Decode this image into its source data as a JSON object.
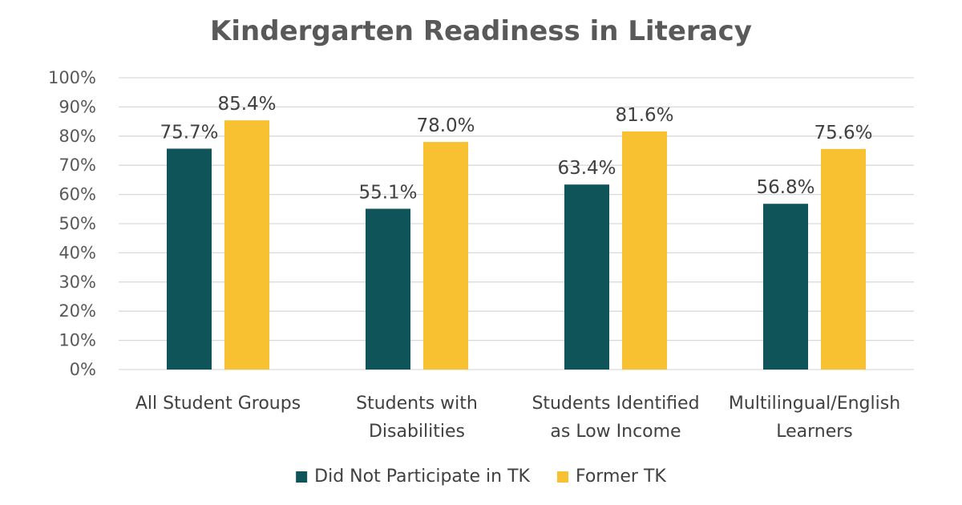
{
  "chart_data": {
    "type": "bar",
    "title": "Kindergarten Readiness in Literacy",
    "categories": [
      [
        "All Student Groups"
      ],
      [
        "Students with",
        "Disabilities"
      ],
      [
        "Students Identified",
        "as Low Income"
      ],
      [
        "Multilingual/English",
        "Learners"
      ]
    ],
    "series": [
      {
        "name": "Did Not Participate in TK",
        "color": "#0f5459",
        "values": [
          75.7,
          55.1,
          63.4,
          56.8
        ],
        "labels": [
          "75.7%",
          "55.1%",
          "63.4%",
          "56.8%"
        ]
      },
      {
        "name": "Former TK",
        "color": "#f8c132",
        "values": [
          85.4,
          78.0,
          81.6,
          75.6
        ],
        "labels": [
          "85.4%",
          "78.0%",
          "81.6%",
          "75.6%"
        ]
      }
    ],
    "yticks": [
      "0%",
      "10%",
      "20%",
      "30%",
      "40%",
      "50%",
      "60%",
      "70%",
      "80%",
      "90%",
      "100%"
    ],
    "ylim": [
      0,
      100
    ],
    "grid": true,
    "legend_position": "bottom"
  }
}
